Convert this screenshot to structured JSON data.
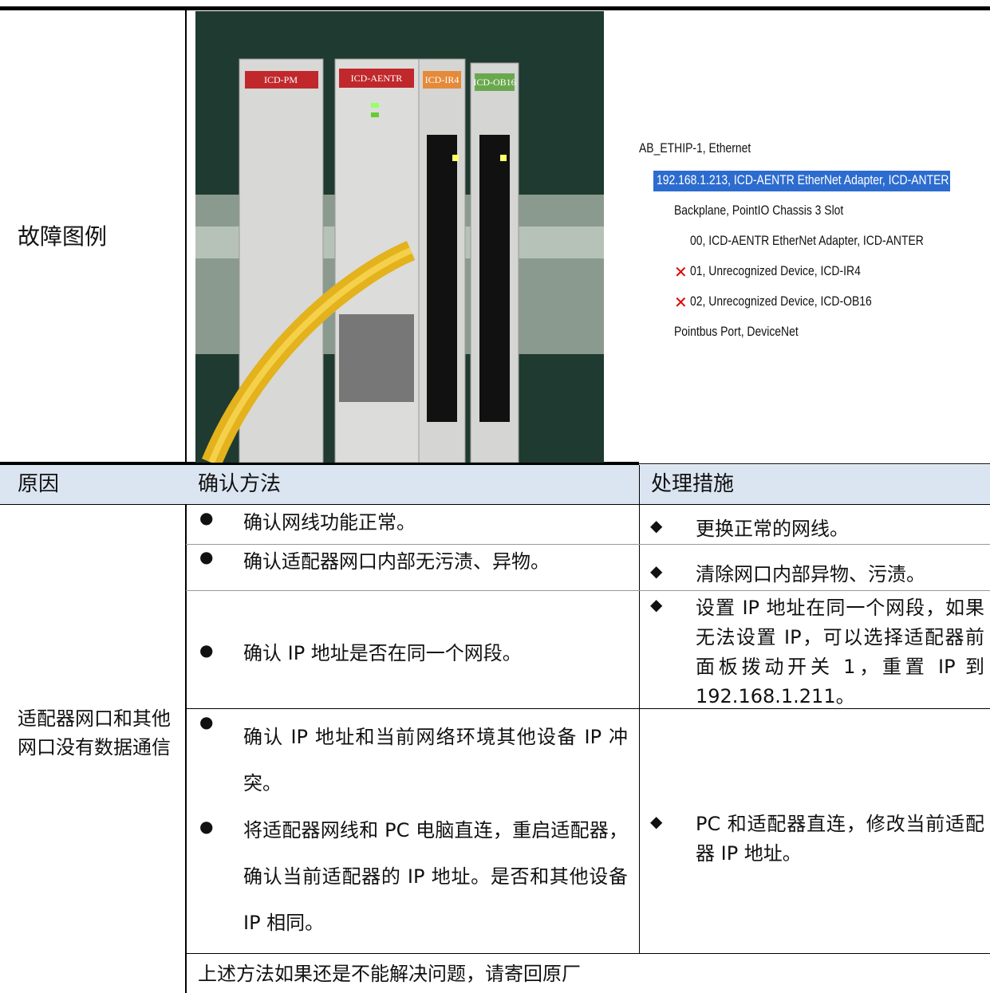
{
  "legend_row": {
    "label": "故障图例",
    "photo": {
      "modules": [
        "ICD-PM",
        "ICD-AENTR",
        "ICD-IR4",
        "ICD-OB16"
      ]
    },
    "tree": [
      "AB_ETHIP-1, Ethernet",
      "192.168.1.213, ICD-AENTR EtherNet Adapter, ICD-ANTER",
      "Backplane, PointIO Chassis 3 Slot",
      "00, ICD-AENTR EtherNet Adapter, ICD-ANTER",
      "01, Unrecognized Device, ICD-IR4",
      "02, Unrecognized Device, ICD-OB16",
      "Pointbus Port, DeviceNet"
    ]
  },
  "table": {
    "headers": [
      "原因",
      "确认方法",
      "处理措施"
    ],
    "cause": "适配器网口和其他网口没有数据通信",
    "rows": [
      {
        "checks": [
          "确认网线功能正常。"
        ],
        "action": "更换正常的网线。"
      },
      {
        "checks": [
          "确认适配器网口内部无污渍、异物。"
        ],
        "action": "清除网口内部异物、污渍。"
      },
      {
        "checks": [
          "确认 IP 地址是否在同一个网段。"
        ],
        "action": "设置 IP 地址在同一个网段，如果无法设置 IP，可以选择适配器前面板拨动开关 1，重置 IP 到 192.168.1.211。"
      },
      {
        "checks": [
          "确认 IP 地址和当前网络环境其他设备 IP 冲突。",
          "将适配器网线和 PC 电脑直连，重启适配器，确认当前适配器的 IP 地址。是否和其他设备 IP 相同。"
        ],
        "action": "PC 和适配器直连，修改当前适配器 IP 地址。"
      }
    ],
    "footer": "上述方法如果还是不能解决问题，请寄回原厂"
  }
}
